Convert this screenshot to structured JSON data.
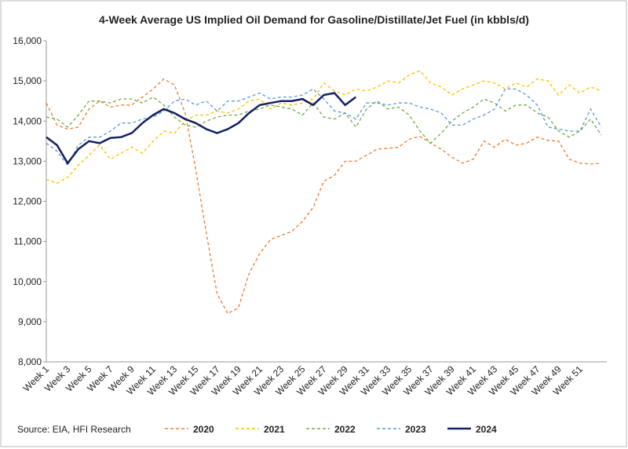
{
  "chart_data": {
    "type": "line",
    "title": "4-Week Average US Implied Oil Demand for Gasoline/Distillate/Jet Fuel (in kbbls/d)",
    "source": "Source: EIA, HFI Research",
    "categories": [
      "Week 1",
      null,
      "Week 3",
      null,
      "Week 5",
      null,
      "Week 7",
      null,
      "Week 9",
      null,
      "Week 11",
      null,
      "Week 13",
      null,
      "Week 15",
      null,
      "Week 17",
      null,
      "Week 19",
      null,
      "Week 21",
      null,
      "Week 23",
      null,
      "Week 25",
      null,
      "Week 27",
      null,
      "Week 29",
      null,
      "Week 31",
      null,
      "Week 33",
      null,
      "Week 35",
      null,
      "Week 37",
      null,
      "Week 39",
      null,
      "Week 41",
      null,
      "Week 43",
      null,
      "Week 45",
      null,
      "Week 47",
      null,
      "Week 49",
      null,
      "Week 51",
      null,
      null
    ],
    "ylim": [
      8000,
      16000
    ],
    "yticks": [
      {
        "value": 8000,
        "label": "8,000"
      },
      {
        "value": 9000,
        "label": "9,000"
      },
      {
        "value": 10000,
        "label": "10,000"
      },
      {
        "value": 11000,
        "label": "11,000"
      },
      {
        "value": 12000,
        "label": "12,000"
      },
      {
        "value": 13000,
        "label": "13,000"
      },
      {
        "value": 14000,
        "label": "14,000"
      },
      {
        "value": 15000,
        "label": "15,000"
      },
      {
        "value": 16000,
        "label": "16,000"
      }
    ],
    "grid": false,
    "legend": "bottom",
    "series": [
      {
        "name": "2020",
        "color": "#ed7d31",
        "line_style": "dashed",
        "values": [
          14450,
          13900,
          13800,
          13850,
          14300,
          14500,
          14350,
          14400,
          14400,
          14600,
          14800,
          15050,
          14900,
          14200,
          12800,
          11200,
          9700,
          9200,
          9350,
          10200,
          10700,
          11050,
          11150,
          11250,
          11500,
          11850,
          12500,
          12650,
          13000,
          13000,
          13150,
          13300,
          13320,
          13350,
          13550,
          13620,
          13450,
          13300,
          13100,
          12950,
          13050,
          13500,
          13350,
          13550,
          13400,
          13450,
          13600,
          13520,
          13500,
          13050,
          12950,
          12930,
          12950
        ]
      },
      {
        "name": "2021",
        "color": "#ffc000",
        "line_style": "dashed",
        "values": [
          12550,
          12450,
          12600,
          12900,
          13150,
          13400,
          13050,
          13200,
          13350,
          13200,
          13500,
          13750,
          13700,
          14000,
          14150,
          14150,
          14250,
          14200,
          14300,
          14500,
          14550,
          14300,
          14450,
          14400,
          14450,
          14550,
          14950,
          14750,
          14650,
          14800,
          14750,
          14850,
          15000,
          14950,
          15150,
          15250,
          14950,
          14850,
          14650,
          14800,
          14900,
          15000,
          14950,
          14800,
          14950,
          14850,
          15050,
          15000,
          14650,
          14900,
          14700,
          14850,
          14750
        ]
      },
      {
        "name": "2022",
        "color": "#70ad47",
        "line_style": "dashed",
        "values": [
          14100,
          14050,
          13850,
          14150,
          14500,
          14500,
          14450,
          14550,
          14550,
          14450,
          14600,
          14400,
          14100,
          13900,
          13850,
          14000,
          14100,
          14150,
          14150,
          14250,
          14300,
          14400,
          14350,
          14300,
          14150,
          14450,
          14100,
          14050,
          14200,
          13850,
          14300,
          14500,
          14300,
          14350,
          14150,
          13750,
          13450,
          13700,
          14000,
          14200,
          14350,
          14550,
          14450,
          14250,
          14400,
          14400,
          14200,
          14100,
          13750,
          13600,
          13750,
          14050,
          13650
        ]
      },
      {
        "name": "2023",
        "color": "#5b9bd5",
        "line_style": "dashed",
        "values": [
          13450,
          13250,
          12900,
          13400,
          13600,
          13600,
          13750,
          13950,
          13950,
          14050,
          14100,
          14250,
          14500,
          14550,
          14400,
          14500,
          14250,
          14500,
          14500,
          14600,
          14700,
          14550,
          14600,
          14600,
          14650,
          14800,
          14550,
          14250,
          14200,
          14050,
          14450,
          14450,
          14400,
          14450,
          14450,
          14350,
          14300,
          14200,
          13900,
          13900,
          14050,
          14150,
          14300,
          14800,
          14800,
          14650,
          14400,
          13850,
          13800,
          13750,
          13750,
          14300,
          13850
        ]
      },
      {
        "name": "2024",
        "color": "#142060",
        "line_style": "solid",
        "values": [
          13600,
          13400,
          12950,
          13300,
          13500,
          13450,
          13580,
          13600,
          13700,
          13950,
          14150,
          14300,
          14200,
          14050,
          13950,
          13800,
          13700,
          13800,
          13950,
          14200,
          14400,
          14450,
          14500,
          14500,
          14550,
          14400,
          14650,
          14700,
          14400,
          14600,
          null,
          null,
          null,
          null,
          null,
          null,
          null,
          null,
          null,
          null,
          null,
          null,
          null,
          null,
          null,
          null,
          null,
          null,
          null,
          null,
          null,
          null,
          null
        ]
      }
    ]
  }
}
